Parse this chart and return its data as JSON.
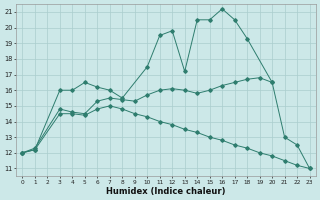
{
  "curve1_x": [
    0,
    1,
    3,
    4,
    5,
    6,
    7,
    8,
    10,
    11,
    12,
    13,
    14,
    15,
    16,
    17,
    18,
    20
  ],
  "curve1_y": [
    12.0,
    12.2,
    16.0,
    16.0,
    16.5,
    16.2,
    16.0,
    15.5,
    17.5,
    19.5,
    19.8,
    17.2,
    20.5,
    20.5,
    21.2,
    20.5,
    19.3,
    16.5
  ],
  "curve2_x": [
    0,
    1,
    3,
    4,
    5,
    6,
    7,
    8,
    9,
    10,
    11,
    12,
    13,
    14,
    15,
    16,
    17,
    18,
    19,
    20,
    21,
    22,
    23
  ],
  "curve2_y": [
    12.0,
    12.2,
    14.5,
    14.5,
    14.4,
    14.8,
    15.0,
    14.8,
    14.5,
    14.3,
    14.0,
    13.8,
    13.5,
    13.3,
    13.0,
    12.8,
    12.5,
    12.3,
    12.0,
    11.8,
    11.5,
    11.2,
    11.0
  ],
  "curve3_x": [
    0,
    1,
    3,
    4,
    5,
    6,
    7,
    8,
    9,
    10,
    11,
    12,
    13,
    14,
    15,
    16,
    17,
    18,
    19,
    20,
    21,
    22,
    23
  ],
  "curve3_y": [
    12.0,
    12.3,
    14.8,
    14.6,
    14.5,
    15.3,
    15.5,
    15.4,
    15.3,
    15.7,
    16.0,
    16.1,
    16.0,
    15.8,
    16.0,
    16.3,
    16.5,
    16.7,
    16.8,
    16.5,
    13.0,
    12.5,
    11.0
  ],
  "color": "#2e7d6e",
  "bg_color": "#cce8e8",
  "grid_color": "#aacece",
  "xlabel": "Humidex (Indice chaleur)",
  "xlim": [
    -0.5,
    23.5
  ],
  "ylim": [
    10.5,
    21.5
  ],
  "yticks": [
    11,
    12,
    13,
    14,
    15,
    16,
    17,
    18,
    19,
    20,
    21
  ],
  "xticks": [
    0,
    1,
    2,
    3,
    4,
    5,
    6,
    7,
    8,
    9,
    10,
    11,
    12,
    13,
    14,
    15,
    16,
    17,
    18,
    19,
    20,
    21,
    22,
    23
  ]
}
